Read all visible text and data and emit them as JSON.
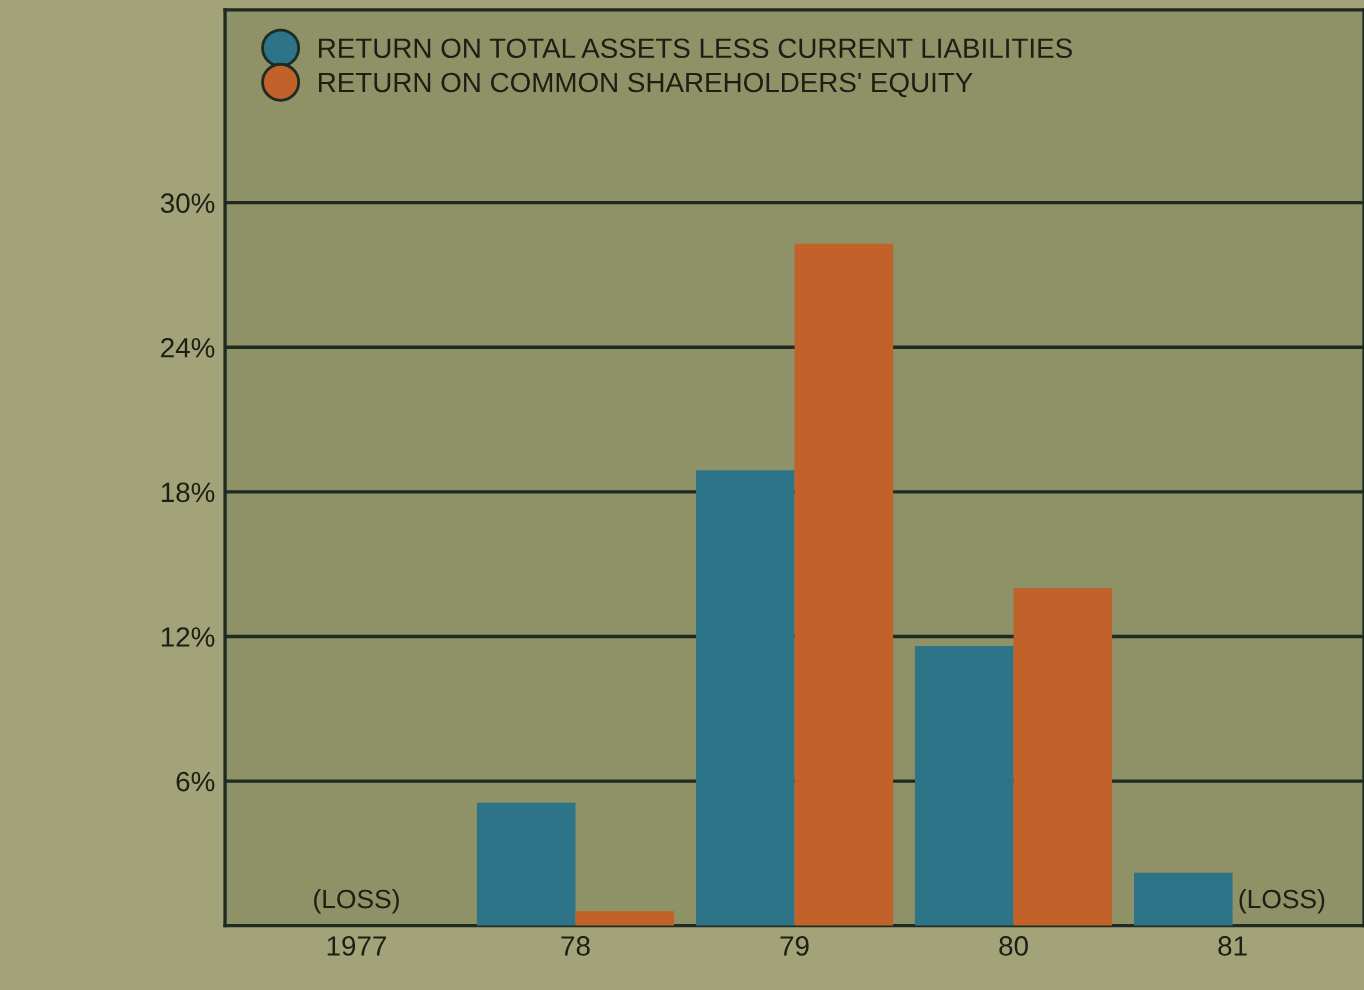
{
  "chart_data": {
    "type": "bar",
    "categories": [
      "1977",
      "78",
      "79",
      "80",
      "81"
    ],
    "series": [
      {
        "name": "RETURN ON TOTAL ASSETS LESS CURRENT LIABILITIES",
        "color": "#2e7488",
        "values": [
          null,
          5.1,
          18.9,
          11.6,
          2.2
        ]
      },
      {
        "name": "RETURN ON COMMON SHAREHOLDERS' EQUITY",
        "color": "#c0622a",
        "values": [
          null,
          0.6,
          28.3,
          14.0,
          null
        ]
      }
    ],
    "ylim": [
      0,
      38
    ],
    "yticks": [
      {
        "value": 6,
        "label": "6%"
      },
      {
        "value": 12,
        "label": "12%"
      },
      {
        "value": 18,
        "label": "18%"
      },
      {
        "value": 24,
        "label": "24%"
      },
      {
        "value": 30,
        "label": "30%"
      }
    ],
    "annotations": [
      "(LOSS)",
      "(LOSS)"
    ],
    "grid": "y",
    "legend": "top left",
    "marker": "circle"
  }
}
